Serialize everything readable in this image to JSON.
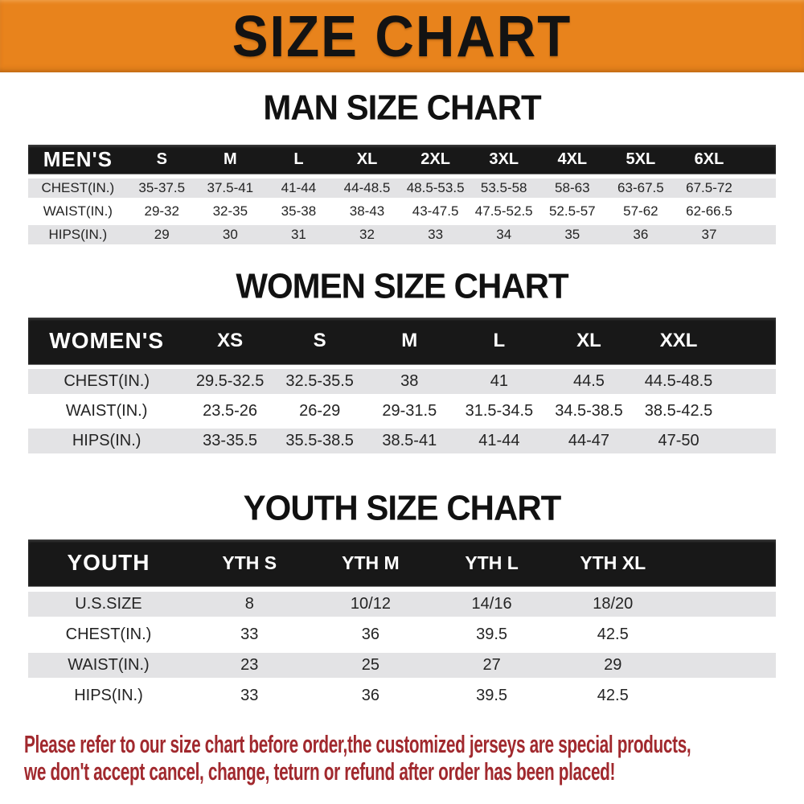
{
  "banner": {
    "title": "SIZE CHART"
  },
  "sections": [
    {
      "id": "men",
      "heading": "MAN SIZE CHART",
      "table": {
        "header_label": "MEN'S",
        "columns": [
          "S",
          "M",
          "L",
          "XL",
          "2XL",
          "3XL",
          "4XL",
          "5XL",
          "6XL"
        ],
        "rows": [
          {
            "label": "CHEST(IN.)",
            "values": [
              "35-37.5",
              "37.5-41",
              "41-44",
              "44-48.5",
              "48.5-53.5",
              "53.5-58",
              "58-63",
              "63-67.5",
              "67.5-72"
            ]
          },
          {
            "label": "WAIST(IN.)",
            "values": [
              "29-32",
              "32-35",
              "35-38",
              "38-43",
              "43-47.5",
              "47.5-52.5",
              "52.5-57",
              "57-62",
              "62-66.5"
            ]
          },
          {
            "label": "HIPS(IN.)",
            "values": [
              "29",
              "30",
              "31",
              "32",
              "33",
              "34",
              "35",
              "36",
              "37"
            ]
          }
        ]
      }
    },
    {
      "id": "women",
      "heading": "WOMEN SIZE CHART",
      "table": {
        "header_label": "WOMEN'S",
        "columns": [
          "XS",
          "S",
          "M",
          "L",
          "XL",
          "XXL"
        ],
        "rows": [
          {
            "label": "CHEST(IN.)",
            "values": [
              "29.5-32.5",
              "32.5-35.5",
              "38",
              "41",
              "44.5",
              "44.5-48.5"
            ]
          },
          {
            "label": "WAIST(IN.)",
            "values": [
              "23.5-26",
              "26-29",
              "29-31.5",
              "31.5-34.5",
              "34.5-38.5",
              "38.5-42.5"
            ]
          },
          {
            "label": "HIPS(IN.)",
            "values": [
              "33-35.5",
              "35.5-38.5",
              "38.5-41",
              "41-44",
              "44-47",
              "47-50"
            ]
          }
        ]
      }
    },
    {
      "id": "youth",
      "heading": "YOUTH SIZE CHART",
      "table": {
        "header_label": "YOUTH",
        "columns": [
          "YTH S",
          "YTH M",
          "YTH L",
          "YTH XL"
        ],
        "rows": [
          {
            "label": "U.S.SIZE",
            "values": [
              "8",
              "10/12",
              "14/16",
              "18/20"
            ]
          },
          {
            "label": "CHEST(IN.)",
            "values": [
              "33",
              "36",
              "39.5",
              "42.5"
            ]
          },
          {
            "label": "WAIST(IN.)",
            "values": [
              "23",
              "25",
              "27",
              "29"
            ]
          },
          {
            "label": "HIPS(IN.)",
            "values": [
              "33",
              "36",
              "39.5",
              "42.5"
            ]
          }
        ]
      }
    }
  ],
  "footer": {
    "line1": "Please refer to our size chart before order,the customized jerseys are special products,",
    "line2": "we don't accept cancel, change, teturn or refund after order has been placed!"
  },
  "colors": {
    "banner_bg": "#E8831C",
    "table_header_bg": "#181818",
    "row_alt_bg": "#E3E3E5",
    "footer_text": "#A1292E",
    "heading_text": "#111111"
  }
}
